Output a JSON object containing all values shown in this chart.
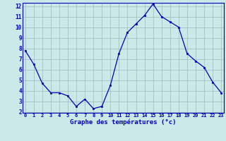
{
  "x": [
    0,
    1,
    2,
    3,
    4,
    5,
    6,
    7,
    8,
    9,
    10,
    11,
    12,
    13,
    14,
    15,
    16,
    17,
    18,
    19,
    20,
    21,
    22,
    23
  ],
  "y": [
    7.8,
    6.5,
    4.7,
    3.8,
    3.8,
    3.5,
    2.5,
    3.2,
    2.3,
    2.5,
    4.5,
    7.5,
    9.5,
    10.3,
    11.1,
    12.2,
    11.0,
    10.5,
    10.0,
    7.5,
    6.8,
    6.2,
    4.8,
    3.8
  ],
  "line_color": "#0000bb",
  "marker_color": "#0000bb",
  "bg_color": "#cce8e8",
  "grid_color": "#99bbbb",
  "xlabel": "Graphe des températures (°c)",
  "xlabel_color": "#0000bb",
  "tick_color": "#0000bb",
  "spine_color": "#0000bb",
  "ylim_min": 2,
  "ylim_max": 12,
  "yticks": [
    2,
    3,
    4,
    5,
    6,
    7,
    8,
    9,
    10,
    11,
    12
  ],
  "xticks": [
    0,
    1,
    2,
    3,
    4,
    5,
    6,
    7,
    8,
    9,
    10,
    11,
    12,
    13,
    14,
    15,
    16,
    17,
    18,
    19,
    20,
    21,
    22,
    23
  ],
  "xtick_labels": [
    "0",
    "1",
    "2",
    "3",
    "4",
    "5",
    "6",
    "7",
    "8",
    "9",
    "10",
    "11",
    "12",
    "13",
    "14",
    "15",
    "16",
    "17",
    "18",
    "19",
    "20",
    "21",
    "22",
    "23"
  ]
}
